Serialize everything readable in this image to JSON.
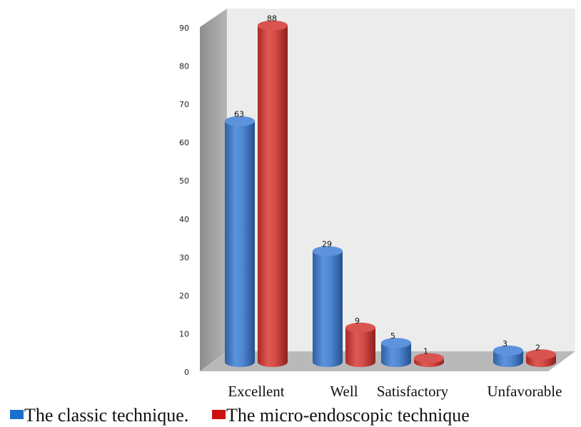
{
  "chart_data": {
    "type": "bar",
    "categories": [
      "Excellent",
      "Well",
      "Satisfactory",
      "Unfavorable"
    ],
    "series": [
      {
        "name": "The classic technique.",
        "values": [
          63,
          29,
          5,
          3
        ],
        "color": "#4a7fc8"
      },
      {
        "name": "The micro-endoscopic technique",
        "values": [
          88,
          9,
          1,
          2
        ],
        "color": "#cc3a38"
      }
    ],
    "ylim": [
      0,
      90
    ],
    "yticks": [
      0,
      10,
      20,
      30,
      40,
      50,
      60,
      70,
      80,
      90
    ],
    "grid": false,
    "legend": "bottom-left",
    "style": "3d-cylinder"
  },
  "legend_colors": [
    "#1a6fd0",
    "#cc1111"
  ]
}
